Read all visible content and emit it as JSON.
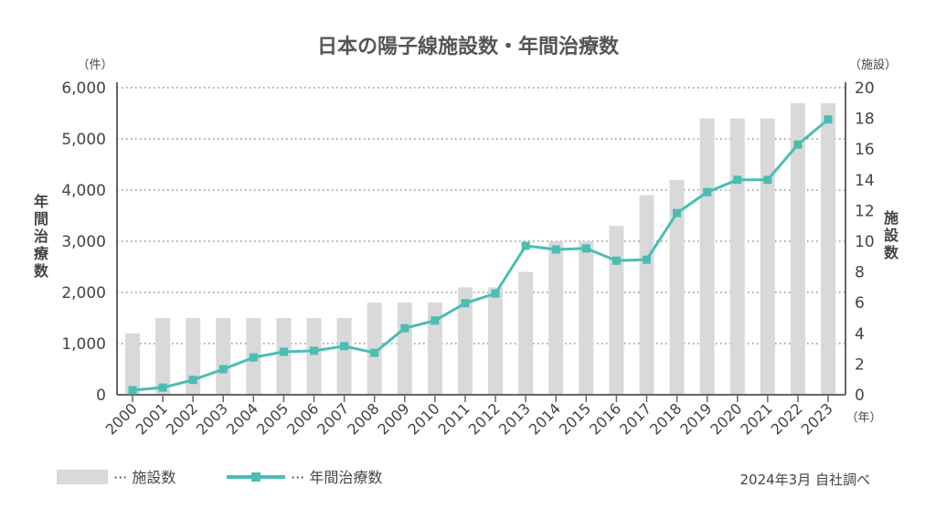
{
  "chart_data": {
    "type": "bar+line",
    "title": "日本の陽子線施設数・年間治療数",
    "categories": [
      "2000",
      "2001",
      "2002",
      "2003",
      "2004",
      "2005",
      "2006",
      "2007",
      "2008",
      "2009",
      "2010",
      "2011",
      "2012",
      "2013",
      "2014",
      "2015",
      "2016",
      "2017",
      "2018",
      "2019",
      "2020",
      "2021",
      "2022",
      "2023"
    ],
    "series": [
      {
        "name": "施設数",
        "type": "bar",
        "axis": "right",
        "color": "#d9d9d9",
        "values": [
          4,
          5,
          5,
          5,
          5,
          5,
          5,
          5,
          6,
          6,
          6,
          7,
          7,
          8,
          10,
          10,
          11,
          13,
          14,
          18,
          18,
          18,
          19,
          19
        ]
      },
      {
        "name": "年間治療数",
        "type": "line",
        "axis": "left",
        "color": "#4bbdb3",
        "values": [
          90,
          140,
          290,
          500,
          730,
          840,
          860,
          950,
          820,
          1300,
          1450,
          1790,
          1980,
          2910,
          2840,
          2860,
          2620,
          2640,
          3550,
          3960,
          4200,
          4200,
          4890,
          5380
        ]
      }
    ],
    "left_axis": {
      "label": "年間治療数",
      "unit": "（件）",
      "ylim": [
        0,
        6000
      ],
      "ticks": [
        "0",
        "1,000",
        "2,000",
        "3,000",
        "4,000",
        "5,000",
        "6,000"
      ]
    },
    "right_axis": {
      "label": "施設数",
      "unit": "（施設）",
      "ylim": [
        0,
        20
      ],
      "ticks": [
        "0",
        "2",
        "4",
        "6",
        "8",
        "10",
        "12",
        "14",
        "16",
        "18",
        "20"
      ]
    },
    "x_unit": "（年）",
    "grid": true,
    "legend": {
      "placement": "bottom-left",
      "bar_label": "··· 施設数",
      "line_label": "··· 年間治療数"
    },
    "source_note": "2024年3月 自社調べ"
  }
}
